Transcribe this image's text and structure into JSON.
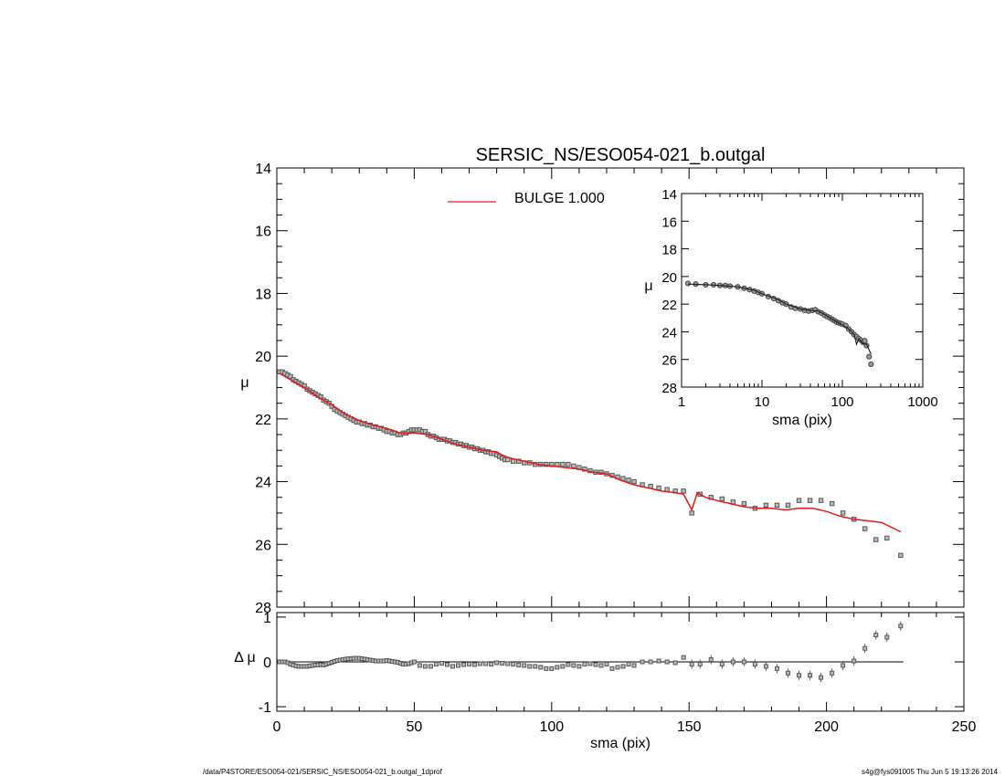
{
  "title": "SERSIC_NS/ESO054-021_b.outgal",
  "footer": {
    "left": "/data/P4STORE/ESO054-021/SERSIC_NS/ESO054-021_b.outgal_1dprof",
    "right": "s4g@fys091005  Thu Jun  5 19:13:26 2014"
  },
  "colors": {
    "model": "#e31a1c",
    "data": "#555555",
    "axis": "#000000"
  },
  "chart_data": [
    {
      "type": "scatter",
      "panel": "main",
      "xlabel": "sma (pix)",
      "ylabel": "μ",
      "xlim": [
        0,
        250
      ],
      "ylim": [
        28,
        14
      ],
      "x_ticks": [
        0,
        50,
        100,
        150,
        200,
        250
      ],
      "y_ticks": [
        14,
        16,
        18,
        20,
        22,
        24,
        26,
        28
      ],
      "legend": {
        "position": "top-center",
        "label": "BULGE  1.000"
      },
      "series": [
        {
          "kind": "points",
          "x": [
            1,
            2,
            3,
            4,
            5,
            6,
            7,
            8,
            9,
            10,
            11,
            12,
            13,
            14,
            15,
            16,
            17,
            18,
            19,
            20,
            21,
            22,
            23,
            24,
            25,
            26,
            27,
            28,
            29,
            30,
            31,
            32,
            33,
            34,
            35,
            36,
            37,
            38,
            39,
            40,
            41,
            42,
            43,
            44,
            45,
            46,
            47,
            48,
            49,
            50,
            51,
            52,
            53,
            54,
            55,
            56,
            57,
            58,
            59,
            60,
            61,
            62,
            63,
            64,
            65,
            66,
            67,
            68,
            69,
            70,
            71,
            72,
            73,
            74,
            75,
            76,
            77,
            78,
            79,
            80,
            81,
            82,
            83,
            84,
            86,
            88,
            90,
            92,
            94,
            96,
            98,
            100,
            102,
            104,
            106,
            108,
            110,
            112,
            114,
            116,
            118,
            120,
            122,
            124,
            126,
            128,
            130,
            133,
            136,
            139,
            142,
            145,
            148,
            151,
            154,
            158,
            162,
            166,
            170,
            174,
            178,
            182,
            186,
            190,
            194,
            198,
            202,
            206,
            210,
            214,
            218,
            222,
            227
          ],
          "y": [
            20.5,
            20.5,
            20.55,
            20.6,
            20.65,
            20.75,
            20.8,
            20.85,
            20.9,
            20.95,
            21.05,
            21.1,
            21.15,
            21.2,
            21.25,
            21.3,
            21.4,
            21.45,
            21.5,
            21.6,
            21.7,
            21.75,
            21.8,
            21.85,
            21.9,
            21.95,
            22.0,
            22.05,
            22.1,
            22.1,
            22.15,
            22.15,
            22.2,
            22.2,
            22.25,
            22.25,
            22.3,
            22.3,
            22.35,
            22.4,
            22.4,
            22.45,
            22.45,
            22.5,
            22.5,
            22.45,
            22.45,
            22.4,
            22.35,
            22.35,
            22.35,
            22.35,
            22.4,
            22.4,
            22.5,
            22.55,
            22.55,
            22.6,
            22.65,
            22.65,
            22.65,
            22.7,
            22.7,
            22.75,
            22.75,
            22.8,
            22.8,
            22.85,
            22.85,
            22.9,
            22.9,
            22.95,
            22.95,
            23.0,
            23.0,
            23.05,
            23.05,
            23.1,
            23.1,
            23.15,
            23.2,
            23.25,
            23.3,
            23.3,
            23.35,
            23.35,
            23.4,
            23.4,
            23.45,
            23.45,
            23.45,
            23.45,
            23.45,
            23.45,
            23.45,
            23.5,
            23.55,
            23.6,
            23.65,
            23.7,
            23.7,
            23.75,
            23.8,
            23.85,
            23.9,
            23.95,
            24.0,
            24.1,
            24.15,
            24.2,
            24.25,
            24.3,
            24.3,
            25.0,
            24.4,
            24.5,
            24.55,
            24.65,
            24.7,
            24.85,
            24.75,
            24.75,
            24.75,
            24.6,
            24.6,
            24.6,
            24.7,
            25.0,
            25.2,
            25.5,
            25.85,
            25.8,
            26.35
          ]
        },
        {
          "kind": "line",
          "name": "BULGE  1.000",
          "x": [
            1,
            5,
            10,
            15,
            20,
            25,
            30,
            35,
            40,
            45,
            50,
            55,
            60,
            65,
            70,
            75,
            80,
            82,
            85,
            90,
            95,
            100,
            105,
            110,
            115,
            120,
            125,
            130,
            135,
            140,
            145,
            148,
            151,
            153,
            156,
            160,
            165,
            170,
            175,
            180,
            185,
            190,
            195,
            200,
            205,
            210,
            215,
            220,
            227
          ],
          "y": [
            20.55,
            20.75,
            21.0,
            21.3,
            21.55,
            21.85,
            22.05,
            22.2,
            22.3,
            22.45,
            22.45,
            22.5,
            22.65,
            22.8,
            22.9,
            23.0,
            23.05,
            23.15,
            23.25,
            23.35,
            23.45,
            23.5,
            23.55,
            23.6,
            23.7,
            23.75,
            23.95,
            24.1,
            24.2,
            24.3,
            24.35,
            24.4,
            24.9,
            24.35,
            24.5,
            24.6,
            24.7,
            24.8,
            24.85,
            24.85,
            24.9,
            24.85,
            24.85,
            24.95,
            25.1,
            25.2,
            25.25,
            25.3,
            25.6
          ]
        }
      ]
    },
    {
      "type": "scatter",
      "panel": "inset",
      "xlabel": "sma (pix)",
      "ylabel": "μ",
      "x_scale": "log",
      "xlim": [
        1,
        1000
      ],
      "ylim": [
        28,
        14
      ],
      "x_ticks": [
        1,
        10,
        100,
        1000
      ],
      "y_ticks": [
        14,
        16,
        18,
        20,
        22,
        24,
        26,
        28
      ],
      "series": [
        {
          "kind": "points",
          "x": [
            1.2,
            1.5,
            2,
            2.5,
            3,
            3.5,
            4,
            5,
            6,
            7,
            8,
            9,
            10,
            12,
            14,
            16,
            18,
            20,
            23,
            26,
            30,
            34,
            38,
            42,
            46,
            50,
            55,
            60,
            65,
            70,
            75,
            80,
            85,
            90,
            95,
            100,
            110,
            120,
            130,
            140,
            150,
            160,
            170,
            180,
            190,
            200,
            215,
            227
          ],
          "y": [
            20.5,
            20.55,
            20.6,
            20.6,
            20.65,
            20.65,
            20.7,
            20.75,
            20.85,
            20.95,
            21.05,
            21.15,
            21.25,
            21.45,
            21.6,
            21.75,
            21.9,
            22.0,
            22.2,
            22.3,
            22.35,
            22.45,
            22.5,
            22.45,
            22.4,
            22.55,
            22.65,
            22.8,
            22.9,
            23.0,
            23.1,
            23.2,
            23.3,
            23.35,
            23.4,
            23.45,
            23.55,
            23.8,
            24.0,
            24.2,
            24.35,
            24.5,
            24.6,
            24.75,
            24.65,
            25.0,
            25.8,
            26.35
          ]
        },
        {
          "kind": "line",
          "x": [
            1.2,
            2,
            3,
            5,
            8,
            10,
            15,
            20,
            30,
            40,
            50,
            60,
            80,
            100,
            120,
            140,
            150,
            160,
            180,
            200,
            227
          ],
          "y": [
            20.55,
            20.6,
            20.65,
            20.75,
            21.0,
            21.25,
            21.6,
            22.0,
            22.35,
            22.45,
            22.5,
            22.75,
            23.2,
            23.5,
            23.8,
            24.2,
            24.9,
            24.5,
            24.85,
            24.9,
            25.6
          ]
        }
      ]
    },
    {
      "type": "scatter",
      "panel": "residual",
      "xlabel": "sma (pix)",
      "ylabel": "Δ μ",
      "xlim": [
        0,
        250
      ],
      "ylim": [
        -1.1,
        1.1
      ],
      "x_ticks": [
        0,
        50,
        100,
        150,
        200,
        250
      ],
      "x_tick_labels": [
        "0",
        "50",
        "100",
        "150",
        "200",
        "250"
      ],
      "y_ticks": [
        -1,
        0,
        1
      ],
      "zero_line": {
        "from": 0,
        "to": 228
      },
      "series": [
        {
          "kind": "points",
          "x": [
            1,
            2,
            3,
            4,
            5,
            6,
            7,
            8,
            9,
            10,
            11,
            12,
            13,
            14,
            15,
            16,
            17,
            18,
            19,
            20,
            21,
            22,
            23,
            24,
            25,
            26,
            27,
            28,
            29,
            30,
            31,
            32,
            33,
            34,
            35,
            36,
            37,
            38,
            39,
            40,
            41,
            42,
            43,
            44,
            45,
            46,
            47,
            48,
            49,
            50,
            52,
            54,
            56,
            58,
            60,
            62,
            64,
            66,
            68,
            70,
            72,
            74,
            76,
            78,
            80,
            82,
            84,
            86,
            88,
            90,
            92,
            94,
            96,
            98,
            100,
            102,
            104,
            106,
            108,
            110,
            112,
            114,
            116,
            118,
            120,
            122,
            124,
            126,
            128,
            130,
            133,
            136,
            139,
            142,
            145,
            148,
            151,
            154,
            158,
            162,
            166,
            170,
            174,
            178,
            182,
            186,
            190,
            194,
            198,
            202,
            206,
            210,
            214,
            218,
            222,
            227
          ],
          "y": [
            0.0,
            0.0,
            0.0,
            -0.02,
            -0.05,
            -0.07,
            -0.09,
            -0.1,
            -0.1,
            -0.1,
            -0.1,
            -0.09,
            -0.08,
            -0.07,
            -0.07,
            -0.06,
            -0.07,
            -0.05,
            -0.03,
            -0.01,
            0.01,
            0.03,
            0.04,
            0.05,
            0.06,
            0.07,
            0.07,
            0.08,
            0.08,
            0.08,
            0.07,
            0.06,
            0.05,
            0.04,
            0.03,
            0.02,
            0.02,
            0.02,
            0.02,
            0.03,
            0.02,
            0.01,
            0.0,
            -0.01,
            -0.03,
            -0.05,
            -0.05,
            -0.04,
            -0.02,
            0.0,
            -0.08,
            -0.1,
            -0.1,
            -0.05,
            -0.03,
            -0.06,
            -0.1,
            -0.08,
            -0.06,
            -0.05,
            -0.06,
            -0.04,
            -0.04,
            -0.05,
            -0.02,
            -0.03,
            -0.04,
            -0.05,
            -0.07,
            -0.08,
            -0.1,
            -0.1,
            -0.12,
            -0.15,
            -0.15,
            -0.12,
            -0.1,
            -0.06,
            -0.08,
            -0.1,
            -0.05,
            -0.04,
            -0.06,
            -0.08,
            -0.05,
            -0.15,
            -0.12,
            -0.1,
            -0.05,
            -0.08,
            0.0,
            0.0,
            0.02,
            0.0,
            -0.02,
            0.1,
            -0.05,
            -0.05,
            0.05,
            -0.05,
            0.0,
            0.0,
            -0.05,
            -0.1,
            -0.15,
            -0.25,
            -0.3,
            -0.3,
            -0.35,
            -0.25,
            -0.08,
            0.02,
            0.3,
            0.6,
            0.55,
            0.8
          ]
        }
      ]
    }
  ]
}
